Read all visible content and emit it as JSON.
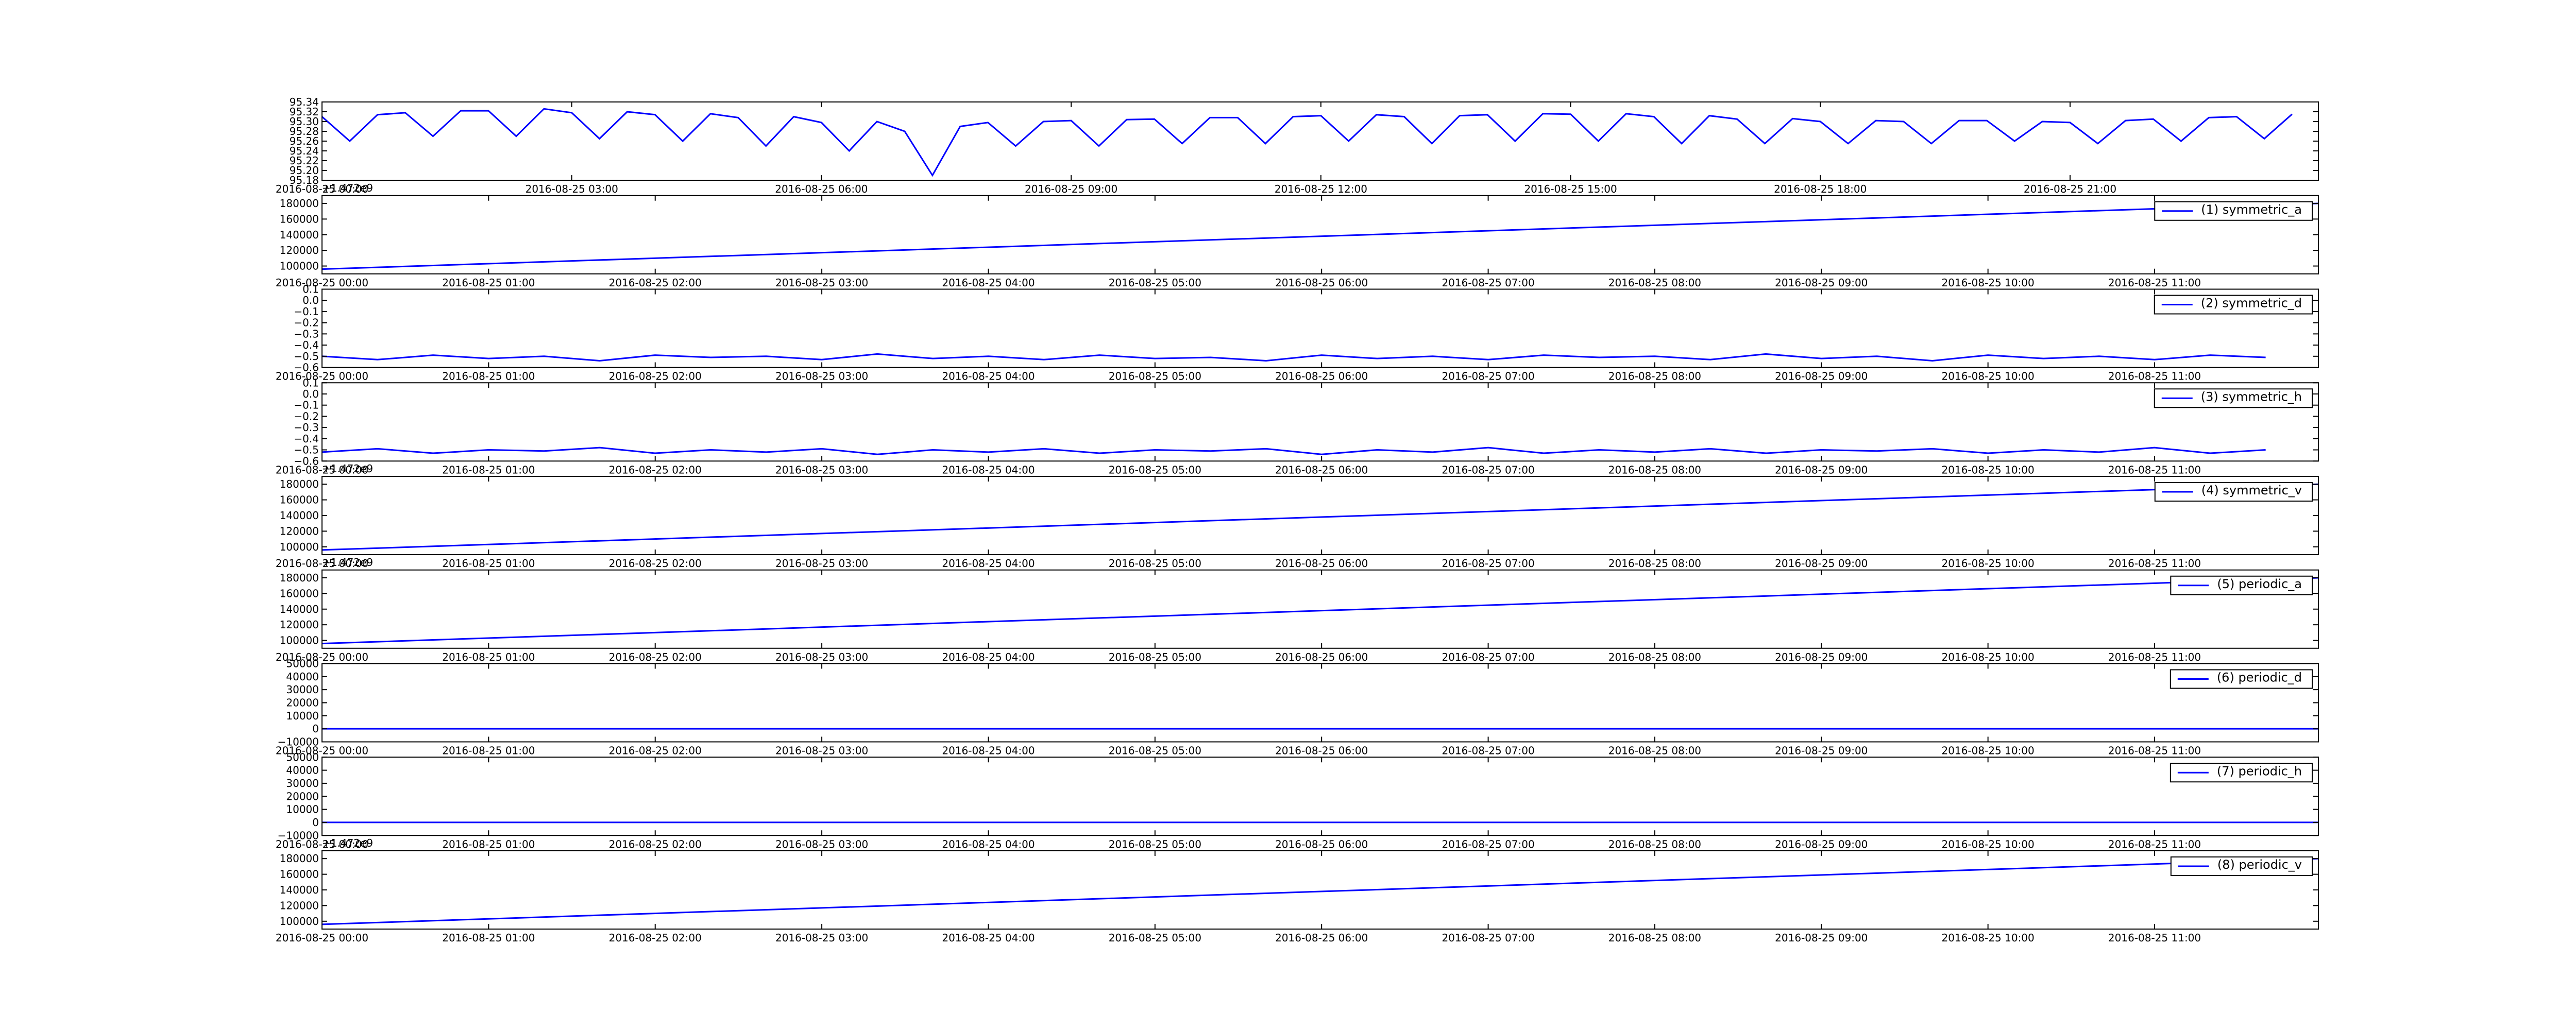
{
  "chart_data": [
    {
      "type": "line",
      "y_offset_label": null,
      "xlim": [
        "2016-08-25 00:00",
        "2016-08-25 23:59"
      ],
      "xticks": [
        "2016-08-25 00:00",
        "2016-08-25 03:00",
        "2016-08-25 06:00",
        "2016-08-25 09:00",
        "2016-08-25 12:00",
        "2016-08-25 15:00",
        "2016-08-25 18:00",
        "2016-08-25 21:00"
      ],
      "ylim": [
        95.18,
        95.34
      ],
      "yticks": [
        95.18,
        {
          "value": 95.2,
          "label": "95.20"
        },
        95.22,
        95.24,
        95.26,
        95.28,
        {
          "value": 95.3,
          "label": "95.30"
        },
        95.32,
        95.34
      ],
      "x": [
        "2016-08-25 00:00",
        "2016-08-25 00:20",
        "2016-08-25 00:40",
        "2016-08-25 01:00",
        "2016-08-25 01:20",
        "2016-08-25 01:40",
        "2016-08-25 02:00",
        "2016-08-25 02:20",
        "2016-08-25 02:40",
        "2016-08-25 03:00",
        "2016-08-25 03:20",
        "2016-08-25 03:40",
        "2016-08-25 04:00",
        "2016-08-25 04:20",
        "2016-08-25 04:40",
        "2016-08-25 05:00",
        "2016-08-25 05:20",
        "2016-08-25 05:40",
        "2016-08-25 06:00",
        "2016-08-25 06:20",
        "2016-08-25 06:40",
        "2016-08-25 07:00",
        "2016-08-25 07:20",
        "2016-08-25 07:40",
        "2016-08-25 08:00",
        "2016-08-25 08:20",
        "2016-08-25 08:40",
        "2016-08-25 09:00",
        "2016-08-25 09:20",
        "2016-08-25 09:40",
        "2016-08-25 10:00",
        "2016-08-25 10:20",
        "2016-08-25 10:40",
        "2016-08-25 11:00",
        "2016-08-25 11:20",
        "2016-08-25 11:40",
        "2016-08-25 12:00",
        "2016-08-25 12:20",
        "2016-08-25 12:40",
        "2016-08-25 13:00",
        "2016-08-25 13:20",
        "2016-08-25 13:40",
        "2016-08-25 14:00",
        "2016-08-25 14:20",
        "2016-08-25 14:40",
        "2016-08-25 15:00",
        "2016-08-25 15:20",
        "2016-08-25 15:40",
        "2016-08-25 16:00",
        "2016-08-25 16:20",
        "2016-08-25 16:40",
        "2016-08-25 17:00",
        "2016-08-25 17:20",
        "2016-08-25 17:40",
        "2016-08-25 18:00",
        "2016-08-25 18:20",
        "2016-08-25 18:40",
        "2016-08-25 19:00",
        "2016-08-25 19:20",
        "2016-08-25 19:40",
        "2016-08-25 20:00",
        "2016-08-25 20:20",
        "2016-08-25 20:40",
        "2016-08-25 21:00",
        "2016-08-25 21:20",
        "2016-08-25 21:40",
        "2016-08-25 22:00",
        "2016-08-25 22:20",
        "2016-08-25 22:40",
        "2016-08-25 23:00",
        "2016-08-25 23:20",
        "2016-08-25 23:40"
      ],
      "series": [
        {
          "color": "#0000ff",
          "values": [
            95.31,
            95.26,
            95.314,
            95.318,
            95.27,
            95.322,
            95.322,
            95.27,
            95.326,
            95.318,
            95.265,
            95.32,
            95.314,
            95.26,
            95.316,
            95.308,
            95.25,
            95.31,
            95.298,
            95.24,
            95.3,
            95.28,
            95.19,
            95.29,
            95.298,
            95.25,
            95.3,
            95.302,
            95.25,
            95.304,
            95.305,
            95.255,
            95.308,
            95.308,
            95.255,
            95.31,
            95.312,
            95.26,
            95.314,
            95.31,
            95.255,
            95.312,
            95.314,
            95.26,
            95.316,
            95.315,
            95.26,
            95.316,
            95.31,
            95.255,
            95.312,
            95.305,
            95.255,
            95.306,
            95.3,
            95.255,
            95.302,
            95.3,
            95.255,
            95.302,
            95.302,
            95.26,
            95.3,
            95.298,
            95.255,
            95.302,
            95.305,
            95.26,
            95.308,
            95.31,
            95.265,
            95.315
          ]
        }
      ]
    },
    {
      "type": "line",
      "y_offset_label": "+1.472e9",
      "legend": "upper right",
      "xlim": [
        "2016-08-25 00:00",
        "2016-08-25 11:59"
      ],
      "xticks": [
        "2016-08-25 00:00",
        "2016-08-25 01:00",
        "2016-08-25 02:00",
        "2016-08-25 03:00",
        "2016-08-25 04:00",
        "2016-08-25 05:00",
        "2016-08-25 06:00",
        "2016-08-25 07:00",
        "2016-08-25 08:00",
        "2016-08-25 09:00",
        "2016-08-25 10:00",
        "2016-08-25 11:00"
      ],
      "ylim": [
        90000,
        190000
      ],
      "yticks": [
        100000,
        120000,
        140000,
        160000,
        180000
      ],
      "x": [
        "2016-08-25 00:00",
        "2016-08-25 11:59"
      ],
      "series": [
        {
          "name": "(1) symmetric_a",
          "color": "#0000ff",
          "values": [
            96000,
            180000
          ]
        }
      ]
    },
    {
      "type": "line",
      "y_offset_label": null,
      "legend": "upper right",
      "xlim": [
        "2016-08-25 00:00",
        "2016-08-25 11:59"
      ],
      "xticks": [
        "2016-08-25 00:00",
        "2016-08-25 01:00",
        "2016-08-25 02:00",
        "2016-08-25 03:00",
        "2016-08-25 04:00",
        "2016-08-25 05:00",
        "2016-08-25 06:00",
        "2016-08-25 07:00",
        "2016-08-25 08:00",
        "2016-08-25 09:00",
        "2016-08-25 10:00",
        "2016-08-25 11:00"
      ],
      "ylim": [
        -0.6,
        0.1
      ],
      "yticks": [
        {
          "value": -0.6,
          "label": "−0.6"
        },
        {
          "value": -0.5,
          "label": "−0.5"
        },
        {
          "value": -0.4,
          "label": "−0.4"
        },
        {
          "value": -0.3,
          "label": "−0.3"
        },
        {
          "value": -0.2,
          "label": "−0.2"
        },
        {
          "value": -0.1,
          "label": "−0.1"
        },
        {
          "value": 0,
          "label": "0.0"
        },
        0.1
      ],
      "x": [
        "2016-08-25 00:00",
        "2016-08-25 00:20",
        "2016-08-25 00:40",
        "2016-08-25 01:00",
        "2016-08-25 01:20",
        "2016-08-25 01:40",
        "2016-08-25 02:00",
        "2016-08-25 02:20",
        "2016-08-25 02:40",
        "2016-08-25 03:00",
        "2016-08-25 03:20",
        "2016-08-25 03:40",
        "2016-08-25 04:00",
        "2016-08-25 04:20",
        "2016-08-25 04:40",
        "2016-08-25 05:00",
        "2016-08-25 05:20",
        "2016-08-25 05:40",
        "2016-08-25 06:00",
        "2016-08-25 06:20",
        "2016-08-25 06:40",
        "2016-08-25 07:00",
        "2016-08-25 07:20",
        "2016-08-25 07:40",
        "2016-08-25 08:00",
        "2016-08-25 08:20",
        "2016-08-25 08:40",
        "2016-08-25 09:00",
        "2016-08-25 09:20",
        "2016-08-25 09:40",
        "2016-08-25 10:00",
        "2016-08-25 10:20",
        "2016-08-25 10:40",
        "2016-08-25 11:00",
        "2016-08-25 11:20",
        "2016-08-25 11:40"
      ],
      "series": [
        {
          "name": "(2) symmetric_d",
          "color": "#0000ff",
          "values": [
            -0.5,
            -0.53,
            -0.49,
            -0.52,
            -0.5,
            -0.54,
            -0.49,
            -0.51,
            -0.5,
            -0.53,
            -0.48,
            -0.52,
            -0.5,
            -0.53,
            -0.49,
            -0.52,
            -0.51,
            -0.54,
            -0.49,
            -0.52,
            -0.5,
            -0.53,
            -0.49,
            -0.51,
            -0.5,
            -0.53,
            -0.48,
            -0.52,
            -0.5,
            -0.54,
            -0.49,
            -0.52,
            -0.5,
            -0.53,
            -0.49,
            -0.51
          ]
        }
      ]
    },
    {
      "type": "line",
      "y_offset_label": null,
      "legend": "upper right",
      "xlim": [
        "2016-08-25 00:00",
        "2016-08-25 11:59"
      ],
      "xticks": [
        "2016-08-25 00:00",
        "2016-08-25 01:00",
        "2016-08-25 02:00",
        "2016-08-25 03:00",
        "2016-08-25 04:00",
        "2016-08-25 05:00",
        "2016-08-25 06:00",
        "2016-08-25 07:00",
        "2016-08-25 08:00",
        "2016-08-25 09:00",
        "2016-08-25 10:00",
        "2016-08-25 11:00"
      ],
      "ylim": [
        -0.6,
        0.1
      ],
      "yticks": [
        {
          "value": -0.6,
          "label": "−0.6"
        },
        {
          "value": -0.5,
          "label": "−0.5"
        },
        {
          "value": -0.4,
          "label": "−0.4"
        },
        {
          "value": -0.3,
          "label": "−0.3"
        },
        {
          "value": -0.2,
          "label": "−0.2"
        },
        {
          "value": -0.1,
          "label": "−0.1"
        },
        {
          "value": 0,
          "label": "0.0"
        },
        0.1
      ],
      "x": [
        "2016-08-25 00:00",
        "2016-08-25 00:20",
        "2016-08-25 00:40",
        "2016-08-25 01:00",
        "2016-08-25 01:20",
        "2016-08-25 01:40",
        "2016-08-25 02:00",
        "2016-08-25 02:20",
        "2016-08-25 02:40",
        "2016-08-25 03:00",
        "2016-08-25 03:20",
        "2016-08-25 03:40",
        "2016-08-25 04:00",
        "2016-08-25 04:20",
        "2016-08-25 04:40",
        "2016-08-25 05:00",
        "2016-08-25 05:20",
        "2016-08-25 05:40",
        "2016-08-25 06:00",
        "2016-08-25 06:20",
        "2016-08-25 06:40",
        "2016-08-25 07:00",
        "2016-08-25 07:20",
        "2016-08-25 07:40",
        "2016-08-25 08:00",
        "2016-08-25 08:20",
        "2016-08-25 08:40",
        "2016-08-25 09:00",
        "2016-08-25 09:20",
        "2016-08-25 09:40",
        "2016-08-25 10:00",
        "2016-08-25 10:20",
        "2016-08-25 10:40",
        "2016-08-25 11:00",
        "2016-08-25 11:20",
        "2016-08-25 11:40"
      ],
      "series": [
        {
          "name": "(3) symmetric_h",
          "color": "#0000ff",
          "values": [
            -0.52,
            -0.49,
            -0.53,
            -0.5,
            -0.51,
            -0.48,
            -0.53,
            -0.5,
            -0.52,
            -0.49,
            -0.54,
            -0.5,
            -0.52,
            -0.49,
            -0.53,
            -0.5,
            -0.51,
            -0.49,
            -0.54,
            -0.5,
            -0.52,
            -0.48,
            -0.53,
            -0.5,
            -0.52,
            -0.49,
            -0.53,
            -0.5,
            -0.51,
            -0.49,
            -0.53,
            -0.5,
            -0.52,
            -0.48,
            -0.53,
            -0.5
          ]
        }
      ]
    },
    {
      "type": "line",
      "y_offset_label": "+1.472e9",
      "legend": "upper right",
      "xlim": [
        "2016-08-25 00:00",
        "2016-08-25 11:59"
      ],
      "xticks": [
        "2016-08-25 00:00",
        "2016-08-25 01:00",
        "2016-08-25 02:00",
        "2016-08-25 03:00",
        "2016-08-25 04:00",
        "2016-08-25 05:00",
        "2016-08-25 06:00",
        "2016-08-25 07:00",
        "2016-08-25 08:00",
        "2016-08-25 09:00",
        "2016-08-25 10:00",
        "2016-08-25 11:00"
      ],
      "ylim": [
        90000,
        190000
      ],
      "yticks": [
        100000,
        120000,
        140000,
        160000,
        180000
      ],
      "x": [
        "2016-08-25 00:00",
        "2016-08-25 11:59"
      ],
      "series": [
        {
          "name": "(4) symmetric_v",
          "color": "#0000ff",
          "values": [
            96000,
            180000
          ]
        }
      ]
    },
    {
      "type": "line",
      "y_offset_label": "+1.472e9",
      "legend": "upper right",
      "xlim": [
        "2016-08-25 00:00",
        "2016-08-25 11:59"
      ],
      "xticks": [
        "2016-08-25 00:00",
        "2016-08-25 01:00",
        "2016-08-25 02:00",
        "2016-08-25 03:00",
        "2016-08-25 04:00",
        "2016-08-25 05:00",
        "2016-08-25 06:00",
        "2016-08-25 07:00",
        "2016-08-25 08:00",
        "2016-08-25 09:00",
        "2016-08-25 10:00",
        "2016-08-25 11:00"
      ],
      "ylim": [
        90000,
        190000
      ],
      "yticks": [
        100000,
        120000,
        140000,
        160000,
        180000
      ],
      "x": [
        "2016-08-25 00:00",
        "2016-08-25 11:59"
      ],
      "series": [
        {
          "name": "(5) periodic_a",
          "color": "#0000ff",
          "values": [
            96000,
            180000
          ]
        }
      ]
    },
    {
      "type": "line",
      "y_offset_label": null,
      "legend": "upper right",
      "xlim": [
        "2016-08-25 00:00",
        "2016-08-25 11:59"
      ],
      "xticks": [
        "2016-08-25 00:00",
        "2016-08-25 01:00",
        "2016-08-25 02:00",
        "2016-08-25 03:00",
        "2016-08-25 04:00",
        "2016-08-25 05:00",
        "2016-08-25 06:00",
        "2016-08-25 07:00",
        "2016-08-25 08:00",
        "2016-08-25 09:00",
        "2016-08-25 10:00",
        "2016-08-25 11:00"
      ],
      "ylim": [
        -10000,
        50000
      ],
      "yticks": [
        {
          "value": -10000,
          "label": "−10000"
        },
        0,
        10000,
        20000,
        30000,
        40000,
        50000
      ],
      "x": [
        "2016-08-25 00:00",
        "2016-08-25 11:59"
      ],
      "series": [
        {
          "name": "(6) periodic_d",
          "color": "#0000ff",
          "values": [
            0,
            0
          ]
        }
      ]
    },
    {
      "type": "line",
      "y_offset_label": null,
      "legend": "upper right",
      "xlim": [
        "2016-08-25 00:00",
        "2016-08-25 11:59"
      ],
      "xticks": [
        "2016-08-25 00:00",
        "2016-08-25 01:00",
        "2016-08-25 02:00",
        "2016-08-25 03:00",
        "2016-08-25 04:00",
        "2016-08-25 05:00",
        "2016-08-25 06:00",
        "2016-08-25 07:00",
        "2016-08-25 08:00",
        "2016-08-25 09:00",
        "2016-08-25 10:00",
        "2016-08-25 11:00"
      ],
      "ylim": [
        -10000,
        50000
      ],
      "yticks": [
        {
          "value": -10000,
          "label": "−10000"
        },
        0,
        10000,
        20000,
        30000,
        40000,
        50000
      ],
      "x": [
        "2016-08-25 00:00",
        "2016-08-25 11:59"
      ],
      "series": [
        {
          "name": "(7) periodic_h",
          "color": "#0000ff",
          "values": [
            0,
            0
          ]
        }
      ]
    },
    {
      "type": "line",
      "y_offset_label": "+1.472e9",
      "legend": "upper right",
      "xlim": [
        "2016-08-25 00:00",
        "2016-08-25 11:59"
      ],
      "xticks": [
        "2016-08-25 00:00",
        "2016-08-25 01:00",
        "2016-08-25 02:00",
        "2016-08-25 03:00",
        "2016-08-25 04:00",
        "2016-08-25 05:00",
        "2016-08-25 06:00",
        "2016-08-25 07:00",
        "2016-08-25 08:00",
        "2016-08-25 09:00",
        "2016-08-25 10:00",
        "2016-08-25 11:00"
      ],
      "ylim": [
        90000,
        190000
      ],
      "yticks": [
        100000,
        120000,
        140000,
        160000,
        180000
      ],
      "x": [
        "2016-08-25 00:00",
        "2016-08-25 11:59"
      ],
      "series": [
        {
          "name": "(8) periodic_v",
          "color": "#0000ff",
          "values": [
            96000,
            180000
          ]
        }
      ]
    }
  ]
}
